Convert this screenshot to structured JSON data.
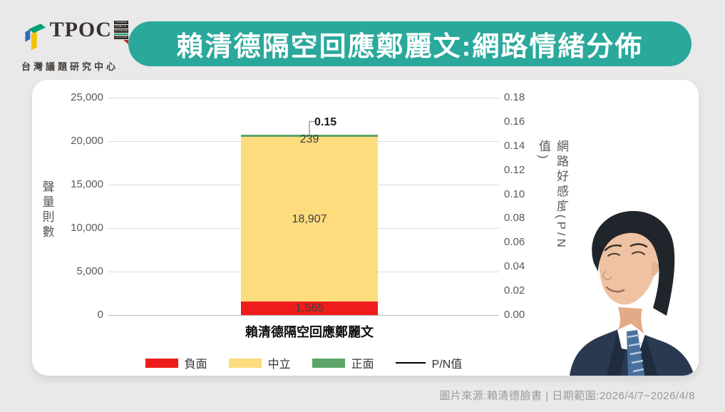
{
  "header": {
    "logo": {
      "brand": "TPOC",
      "seal_lines": [
        "TAIWAN",
        "PUBLIC",
        "OPINION",
        "CENTER"
      ],
      "subtitle": "台灣議題研究中心"
    },
    "title": "賴清德隔空回應鄭麗文:網路情緒分佈"
  },
  "chart_data": {
    "type": "bar",
    "stacked": true,
    "title": "賴清德隔空回應鄭麗文:網路情緒分佈",
    "categories": [
      "賴清德隔空回應鄭麗文"
    ],
    "series": [
      {
        "name": "負面",
        "color": "#ee1c1c",
        "values": [
          1565
        ],
        "label": "1,565"
      },
      {
        "name": "中立",
        "color": "#fcdc7d",
        "values": [
          18907
        ],
        "label": "18,907"
      },
      {
        "name": "正面",
        "color": "#5ba568",
        "values": [
          239
        ],
        "label": "239"
      }
    ],
    "pn_line": {
      "name": "P/N值",
      "color": "#000000",
      "values": [
        0.15
      ],
      "label": "0.15"
    },
    "left_axis": {
      "label": "聲量則數",
      "min": 0,
      "max": 25000,
      "ticks": [
        "25,000",
        "20,000",
        "15,000",
        "10,000",
        "5,000",
        "0"
      ]
    },
    "right_axis": {
      "label": "網路好感度(P/N值)",
      "min": 0,
      "max": 0.18,
      "ticks": [
        "0.18",
        "0.16",
        "0.14",
        "0.12",
        "0.10",
        "0.08",
        "0.06",
        "0.04",
        "0.02",
        "0.00"
      ]
    },
    "legend": [
      {
        "type": "box",
        "swatch": "#ee1c1c",
        "label": "負面"
      },
      {
        "type": "box",
        "swatch": "#fcdc7d",
        "label": "中立"
      },
      {
        "type": "box",
        "swatch": "#5ba568",
        "label": "正面"
      },
      {
        "type": "line",
        "swatch": "#000000",
        "label": "P/N值"
      }
    ],
    "grid": true,
    "legend_position": "bottom"
  },
  "footer": {
    "source": "圖片來源:賴清德臉書 | 日期範圍:2026/4/7~2026/4/8"
  }
}
